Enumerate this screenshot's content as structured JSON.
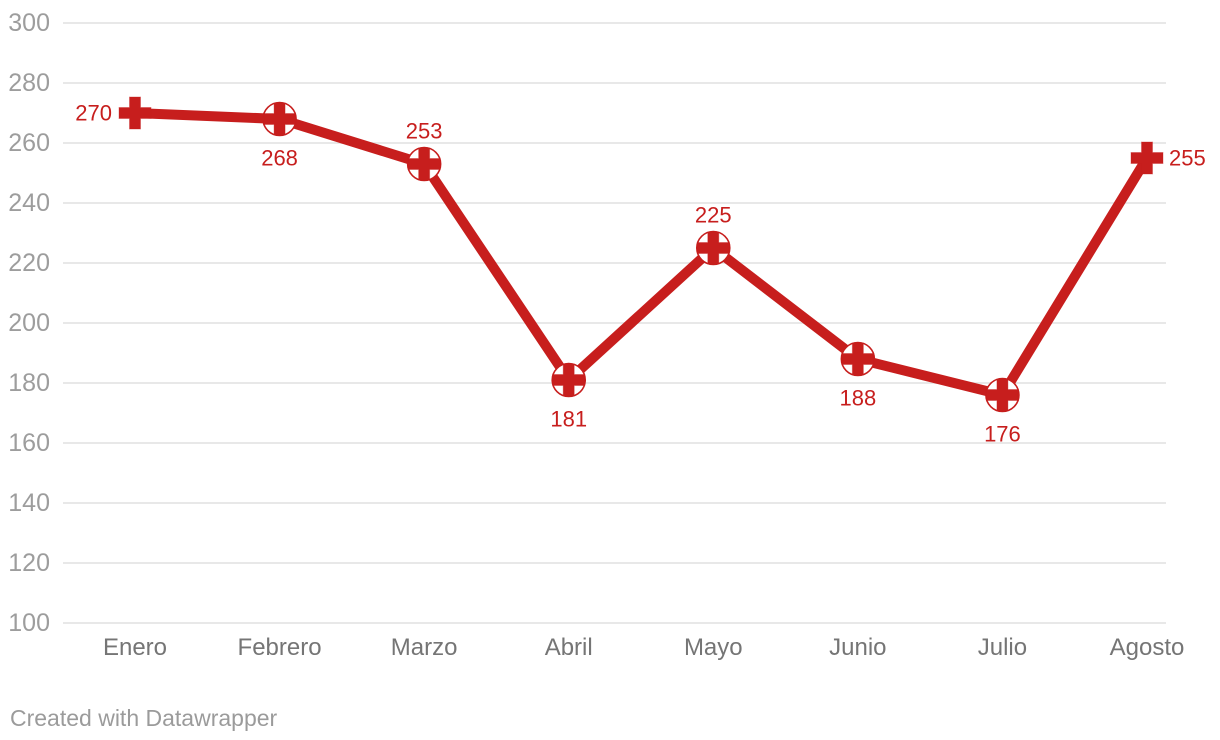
{
  "chart_data": {
    "type": "line",
    "categories": [
      "Enero",
      "Febrero",
      "Marzo",
      "Abril",
      "Mayo",
      "Junio",
      "Julio",
      "Agosto"
    ],
    "values": [
      270,
      268,
      253,
      181,
      225,
      188,
      176,
      255
    ],
    "value_labels": [
      "270",
      "268",
      "253",
      "181",
      "225",
      "188",
      "176",
      "255"
    ],
    "label_positions": [
      "left",
      "below",
      "above",
      "below",
      "above",
      "below",
      "below",
      "right"
    ],
    "title": "",
    "xlabel": "",
    "ylabel": "",
    "ylim": [
      100,
      300
    ],
    "yticks": [
      100,
      120,
      140,
      160,
      180,
      200,
      220,
      240,
      260,
      280,
      300
    ],
    "ytick_labels": [
      "100",
      "120",
      "140",
      "160",
      "180",
      "200",
      "220",
      "240",
      "260",
      "280",
      "300"
    ],
    "grid": "horizontal-on",
    "legend": "none",
    "marker": "cross",
    "ringed_point_indexes": [
      1,
      2,
      3,
      4,
      5,
      6
    ],
    "colors": {
      "line": "#c71e1d",
      "marker": "#c71e1d",
      "value_label": "#c71e1d",
      "gridline": "#e8e8e8",
      "y_tick_text": "#9d9d9d",
      "x_tick_text": "#757575",
      "background": "#ffffff"
    }
  },
  "footer": {
    "credit": "Created with Datawrapper"
  }
}
